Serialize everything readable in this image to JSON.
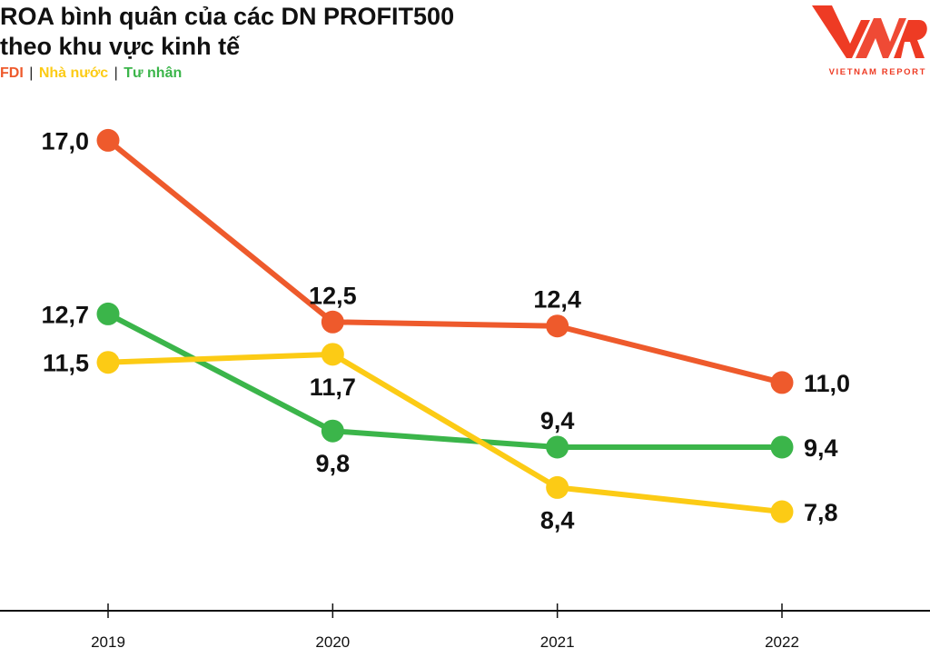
{
  "header": {
    "title_line1": "ROA bình quân của các DN PROFIT500",
    "title_line2": "theo khu vực kinh tế",
    "legend_fdi": "FDI",
    "legend_sep": "|",
    "legend_state": "Nhà nước",
    "legend_private": "Tư nhân"
  },
  "logo": {
    "mark": "VNR",
    "subtitle": "VIETNAM REPORT"
  },
  "colors": {
    "fdi": "#EE5A2C",
    "state": "#FCCB15",
    "private": "#3BB54A",
    "axis": "#111111"
  },
  "chart_data": {
    "type": "line",
    "title": "ROA bình quân của các DN PROFIT500 theo khu vực kinh tế",
    "categories": [
      "2019",
      "2020",
      "2021",
      "2022"
    ],
    "ylim": [
      6,
      18
    ],
    "grid": false,
    "legend_position": "top-left",
    "series": [
      {
        "name": "FDI",
        "color": "#EE5A2C",
        "values": [
          17.0,
          12.5,
          12.4,
          11.0
        ],
        "labels": [
          "17,0",
          "12,5",
          "12,4",
          "11,0"
        ],
        "label_pos": [
          "left",
          "above",
          "above",
          "right"
        ]
      },
      {
        "name": "Nhà nước",
        "color": "#FCCB15",
        "values": [
          11.5,
          11.7,
          8.4,
          7.8
        ],
        "labels": [
          "11,5",
          "11,7",
          "8,4",
          "7,8"
        ],
        "label_pos": [
          "left",
          "below",
          "below",
          "right"
        ]
      },
      {
        "name": "Tư nhân",
        "color": "#3BB54A",
        "values": [
          12.7,
          9.8,
          9.4,
          9.4
        ],
        "labels": [
          "12,7",
          "9,8",
          "9,4",
          "9,4"
        ],
        "label_pos": [
          "left",
          "below",
          "above",
          "right"
        ]
      }
    ]
  }
}
